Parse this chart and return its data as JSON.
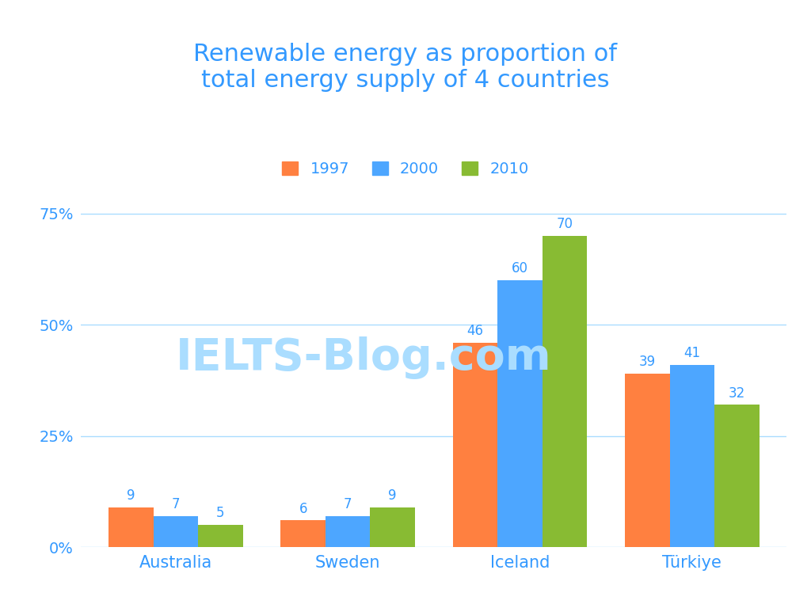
{
  "title": "Renewable energy as proportion of\ntotal energy supply of 4 countries",
  "title_color": "#3399FF",
  "title_fontsize": 22,
  "categories": [
    "Australia",
    "Sweden",
    "Iceland",
    "Türkiye"
  ],
  "years": [
    "1997",
    "2000",
    "2010"
  ],
  "values": {
    "Australia": [
      9,
      7,
      5
    ],
    "Sweden": [
      6,
      7,
      9
    ],
    "Iceland": [
      46,
      60,
      70
    ],
    "Türkiye": [
      39,
      41,
      32
    ]
  },
  "colors": [
    "#FF8040",
    "#4DA6FF",
    "#88BB33"
  ],
  "legend_labels": [
    "1997",
    "2000",
    "2010"
  ],
  "yticks": [
    0,
    25,
    50,
    75
  ],
  "ytick_labels": [
    "0%",
    "25%",
    "50%",
    "75%"
  ],
  "ylim": [
    0,
    82
  ],
  "background_color": "#FFFFFF",
  "grid_color": "#AADDFF",
  "axis_label_color": "#3399FF",
  "bar_label_color": "#3399FF",
  "watermark_text": "IELTS-Blog.com",
  "watermark_color": "#AADDFF",
  "bar_width": 0.26,
  "figsize": [
    10.24,
    7.68
  ],
  "dpi": 100
}
